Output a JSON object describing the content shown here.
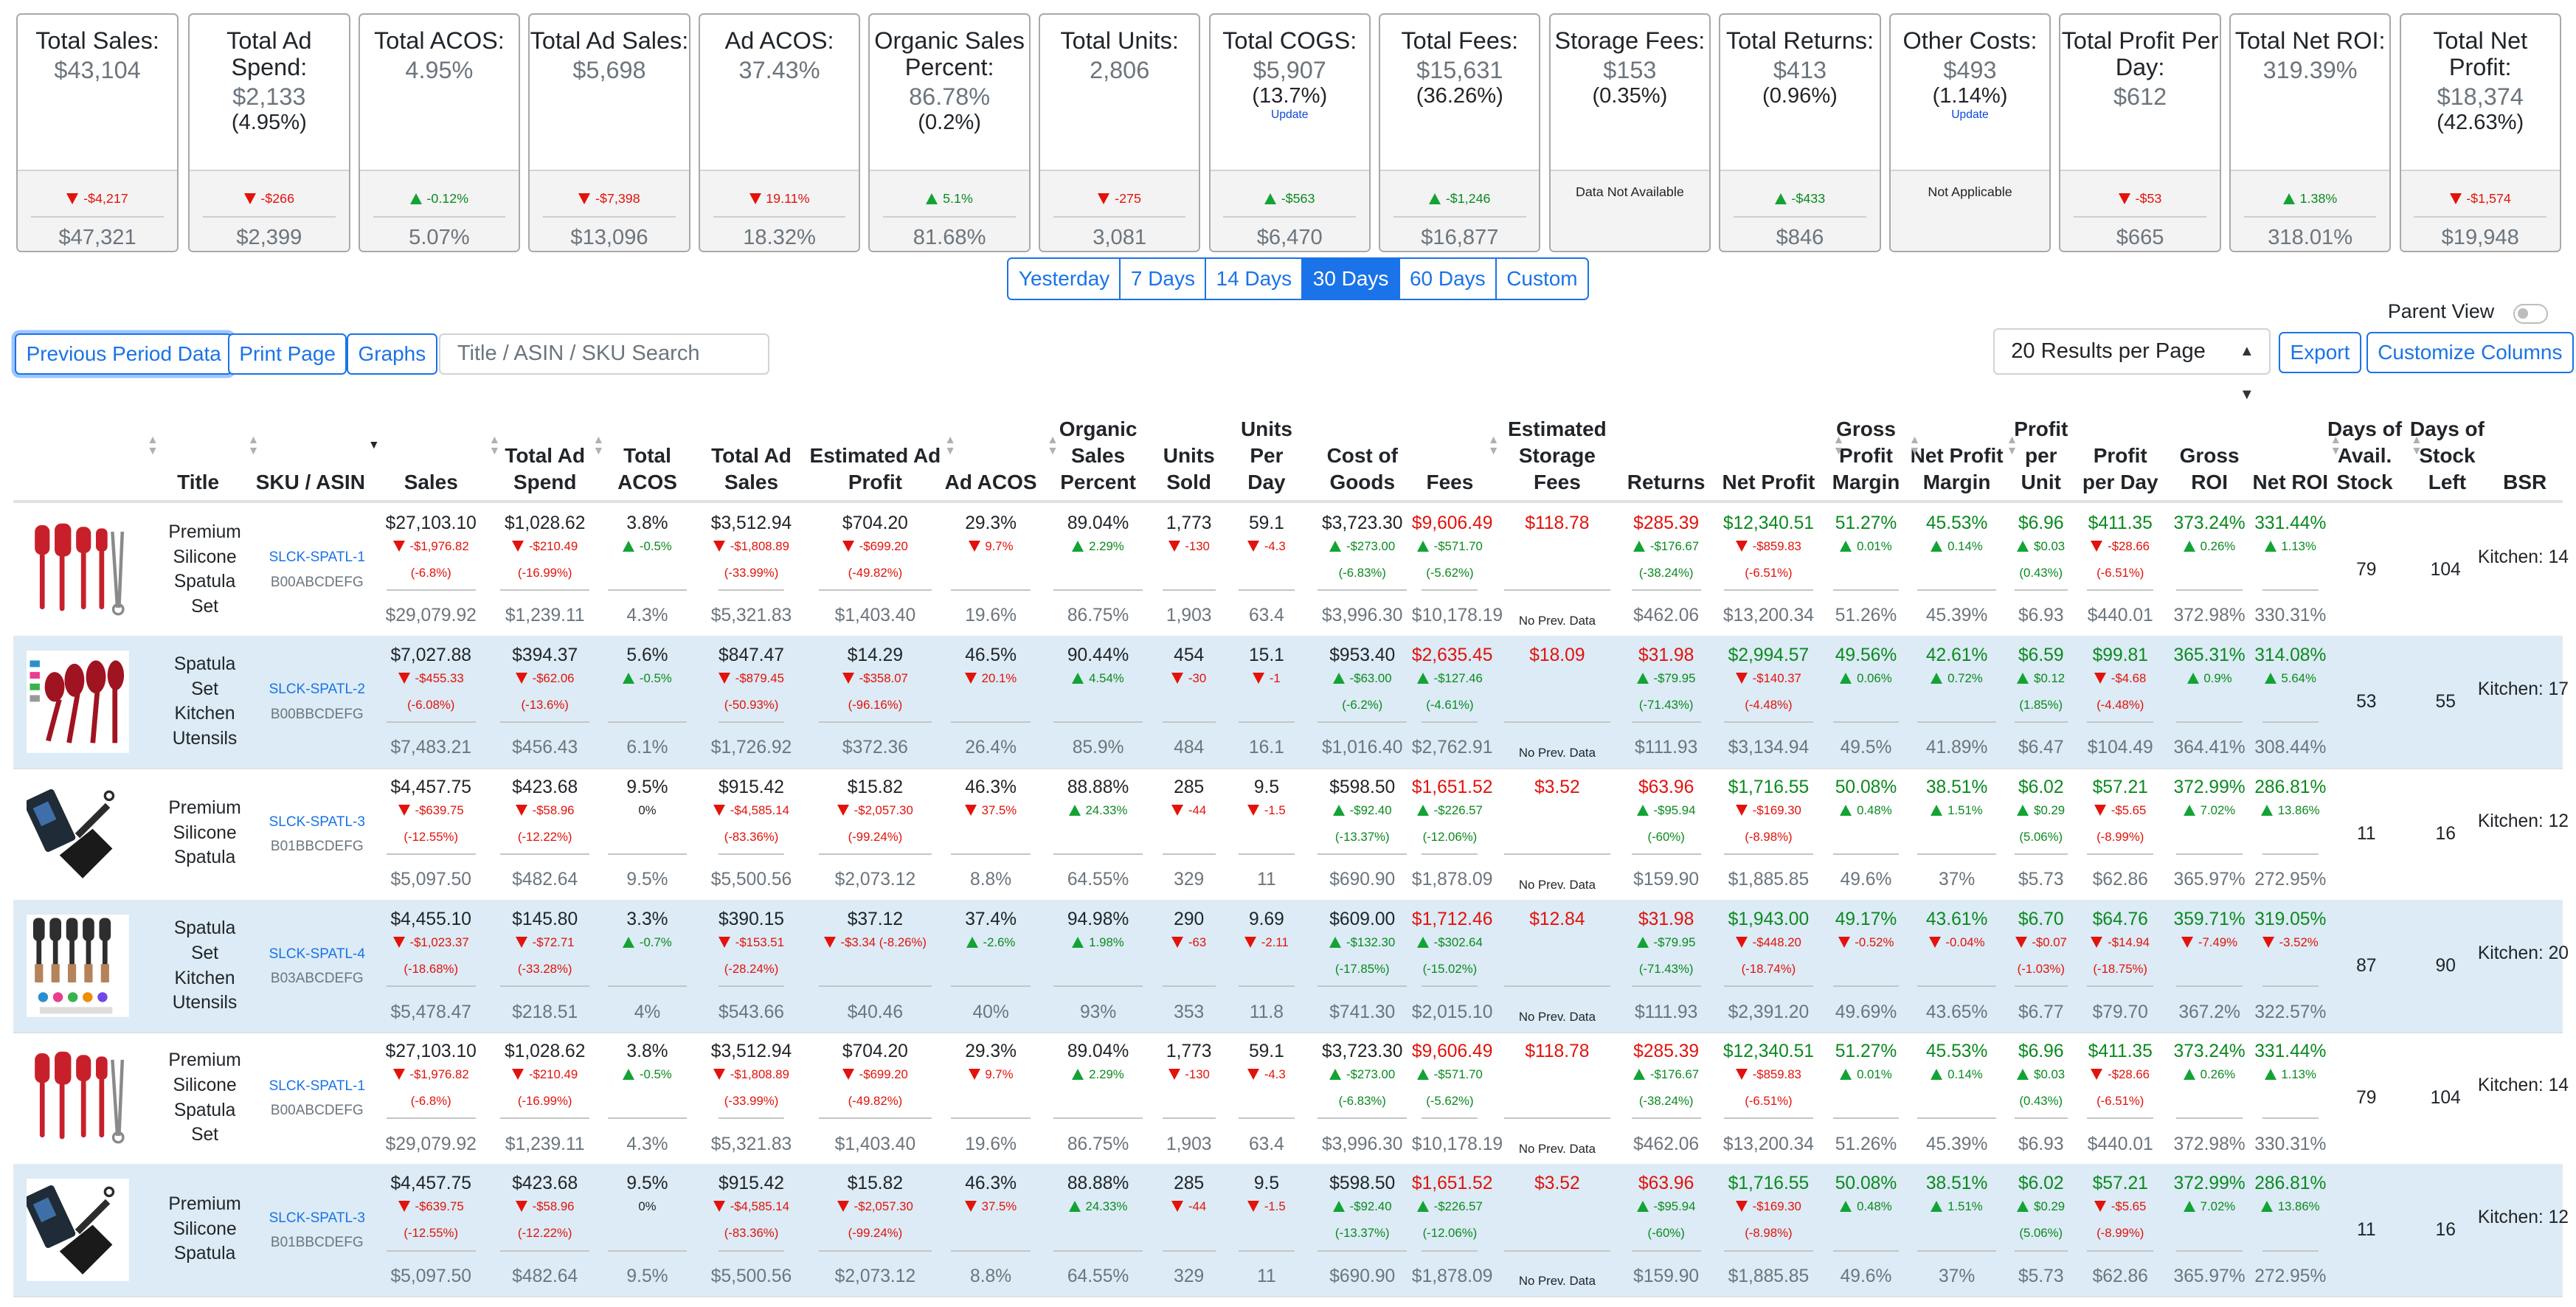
{
  "kpis": [
    {
      "title": "Total Sales:",
      "value": "$43,104",
      "sub": "",
      "link": "",
      "dir": "down",
      "change": "-$4,217",
      "prev": "$47,321"
    },
    {
      "title": "Total Ad Spend:",
      "value": "$2,133",
      "sub": "(4.95%)",
      "link": "",
      "dir": "down",
      "change": "-$266",
      "prev": "$2,399"
    },
    {
      "title": "Total ACOS:",
      "value": "4.95%",
      "sub": "",
      "link": "",
      "dir": "up",
      "change": "-0.12%",
      "prev": "5.07%"
    },
    {
      "title": "Total Ad Sales:",
      "value": "$5,698",
      "sub": "",
      "link": "",
      "dir": "down",
      "change": "-$7,398",
      "prev": "$13,096"
    },
    {
      "title": "Ad ACOS:",
      "value": "37.43%",
      "sub": "",
      "link": "",
      "dir": "down",
      "change": "19.11%",
      "prev": "18.32%"
    },
    {
      "title": "Organic Sales Percent:",
      "value": "86.78%",
      "sub": "(0.2%)",
      "link": "",
      "dir": "up",
      "change": "5.1%",
      "prev": "81.68%"
    },
    {
      "title": "Total Units:",
      "value": "2,806",
      "sub": "",
      "link": "",
      "dir": "down",
      "change": "-275",
      "prev": "3,081"
    },
    {
      "title": "Total COGS:",
      "value": "$5,907",
      "sub": "(13.7%)",
      "link": "Update",
      "dir": "up",
      "change": "-$563",
      "prev": "$6,470"
    },
    {
      "title": "Total Fees:",
      "value": "$15,631",
      "sub": "(36.26%)",
      "link": "",
      "dir": "up",
      "change": "-$1,246",
      "prev": "$16,877"
    },
    {
      "title": "Storage Fees:",
      "value": "$153",
      "sub": "(0.35%)",
      "link": "",
      "dir": "",
      "change": "Data Not Available",
      "prev": ""
    },
    {
      "title": "Total Returns:",
      "value": "$413",
      "sub": "(0.96%)",
      "link": "",
      "dir": "up",
      "change": "-$433",
      "prev": "$846"
    },
    {
      "title": "Other Costs:",
      "value": "$493",
      "sub": "(1.14%)",
      "link": "Update",
      "dir": "",
      "change": "Not Applicable",
      "prev": ""
    },
    {
      "title": "Total Profit Per Day:",
      "value": "$612",
      "sub": "",
      "link": "",
      "dir": "down",
      "change": "-$53",
      "prev": "$665"
    },
    {
      "title": "Total Net ROI:",
      "value": "319.39%",
      "sub": "",
      "link": "",
      "dir": "up",
      "change": "1.38%",
      "prev": "318.01%"
    },
    {
      "title": "Total Net Profit:",
      "value": "$18,374",
      "sub": "(42.63%)",
      "link": "",
      "dir": "down",
      "change": "-$1,574",
      "prev": "$19,948"
    }
  ],
  "periods": [
    "Yesterday",
    "7 Days",
    "14 Days",
    "30 Days",
    "60 Days",
    "Custom"
  ],
  "active_period": "30 Days",
  "toolbar": {
    "previous_period": "Previous Period Data",
    "print": "Print Page",
    "graphs": "Graphs",
    "search_placeholder": "Title / ASIN / SKU Search",
    "results_per_page": "20 Results per Page",
    "export": "Export",
    "customize": "Customize Columns",
    "parent_view": "Parent View"
  },
  "columns": [
    "Title",
    "SKU / ASIN",
    "Sales",
    "Total Ad Spend",
    "Total ACOS",
    "Total Ad Sales",
    "Estimated Ad Profit",
    "Ad ACOS",
    "Organic Sales Percent",
    "Units Sold",
    "Units Per Day",
    "Cost of Goods",
    "Fees",
    "Estimated Storage Fees",
    "Returns",
    "Net Profit",
    "Gross Profit Margin",
    "Net Profit Margin",
    "Profit per Unit",
    "Profit per Day",
    "Gross ROI",
    "Net ROI",
    "Days of Avail. Stock",
    "Days of Stock Left",
    "BSR"
  ],
  "colors": {
    "accent": "#1a73e8",
    "red": "#e3120b",
    "green": "#0a8a1f",
    "stripe": "#dcebf5"
  },
  "products": {
    "p1": {
      "title": "Premium Silicone Spatula Set",
      "sku": "SLCK-SPATL-1",
      "asin": "B00ABCDEFG",
      "image": "red-spatula-set-with-tongs",
      "days_avail": "79",
      "days_left": "104",
      "bsr": "Kitchen: 14"
    },
    "p2": {
      "title": "Spatula Set Kitchen Utensils",
      "sku": "SLCK-SPATL-2",
      "asin": "B00BBCDEFG",
      "image": "red-spatula-set-with-clips",
      "days_avail": "53",
      "days_left": "55",
      "bsr": "Kitchen: 17"
    },
    "p3": {
      "title": "Premium Silicone Spatula",
      "sku": "SLCK-SPATL-3",
      "asin": "B01BBCDEFG",
      "image": "black-turner-spatula-with-box",
      "days_avail": "11",
      "days_left": "16",
      "bsr": "Kitchen: 12"
    },
    "p4": {
      "title": "Spatula Set Kitchen Utensils",
      "sku": "SLCK-SPATL-4",
      "asin": "B03ABCDEFG",
      "image": "wooden-handle-utensil-set",
      "days_avail": "87",
      "days_left": "90",
      "bsr": "Kitchen: 20"
    }
  },
  "metrics": {
    "p1": [
      [
        "$27,103.10",
        "-$1,976.82",
        "(-6.8%)",
        "$29,079.92",
        "down"
      ],
      [
        "$1,028.62",
        "-$210.49",
        "(-16.99%)",
        "$1,239.11",
        "down"
      ],
      [
        "3.8%",
        "-0.5%",
        "",
        "4.3%",
        "up"
      ],
      [
        "$3,512.94",
        "-$1,808.89",
        "(-33.99%)",
        "$5,321.83",
        "down"
      ],
      [
        "$704.20",
        "-$699.20",
        "(-49.82%)",
        "$1,403.40",
        "down"
      ],
      [
        "29.3%",
        "9.7%",
        "",
        "19.6%",
        "down"
      ],
      [
        "89.04%",
        "2.29%",
        "",
        "86.75%",
        "up"
      ],
      [
        "1,773",
        "-130",
        "",
        "1,903",
        "down"
      ],
      [
        "59.1",
        "-4.3",
        "",
        "63.4",
        "down"
      ],
      [
        "$3,723.30",
        "-$273.00",
        "(-6.83%)",
        "$3,996.30",
        "up"
      ],
      [
        "$9,606.49",
        "-$571.70",
        "(-5.62%)",
        "$10,178.19",
        "up"
      ],
      [
        "$118.78",
        "",
        "",
        "No Prev. Data",
        "none"
      ],
      [
        "$285.39",
        "-$176.67",
        "(-38.24%)",
        "$462.06",
        "up"
      ],
      [
        "$12,340.51",
        "-$859.83",
        "(-6.51%)",
        "$13,200.34",
        "down"
      ],
      [
        "51.27%",
        "0.01%",
        "",
        "51.26%",
        "up"
      ],
      [
        "45.53%",
        "0.14%",
        "",
        "45.39%",
        "up"
      ],
      [
        "$6.96",
        "$0.03",
        "(0.43%)",
        "$6.93",
        "up"
      ],
      [
        "$411.35",
        "-$28.66",
        "(-6.51%)",
        "$440.01",
        "down"
      ],
      [
        "373.24%",
        "0.26%",
        "",
        "372.98%",
        "up"
      ],
      [
        "331.44%",
        "1.13%",
        "",
        "330.31%",
        "up"
      ]
    ],
    "p2": [
      [
        "$7,027.88",
        "-$455.33",
        "(-6.08%)",
        "$7,483.21",
        "down"
      ],
      [
        "$394.37",
        "-$62.06",
        "(-13.6%)",
        "$456.43",
        "down"
      ],
      [
        "5.6%",
        "-0.5%",
        "",
        "6.1%",
        "up"
      ],
      [
        "$847.47",
        "-$879.45",
        "(-50.93%)",
        "$1,726.92",
        "down"
      ],
      [
        "$14.29",
        "-$358.07",
        "(-96.16%)",
        "$372.36",
        "down"
      ],
      [
        "46.5%",
        "20.1%",
        "",
        "26.4%",
        "down"
      ],
      [
        "90.44%",
        "4.54%",
        "",
        "85.9%",
        "up"
      ],
      [
        "454",
        "-30",
        "",
        "484",
        "down"
      ],
      [
        "15.1",
        "-1",
        "",
        "16.1",
        "down"
      ],
      [
        "$953.40",
        "-$63.00",
        "(-6.2%)",
        "$1,016.40",
        "up"
      ],
      [
        "$2,635.45",
        "-$127.46",
        "(-4.61%)",
        "$2,762.91",
        "up"
      ],
      [
        "$18.09",
        "",
        "",
        "No Prev. Data",
        "none"
      ],
      [
        "$31.98",
        "-$79.95",
        "(-71.43%)",
        "$111.93",
        "up"
      ],
      [
        "$2,994.57",
        "-$140.37",
        "(-4.48%)",
        "$3,134.94",
        "down"
      ],
      [
        "49.56%",
        "0.06%",
        "",
        "49.5%",
        "up"
      ],
      [
        "42.61%",
        "0.72%",
        "",
        "41.89%",
        "up"
      ],
      [
        "$6.59",
        "$0.12",
        "(1.85%)",
        "$6.47",
        "up"
      ],
      [
        "$99.81",
        "-$4.68",
        "(-4.48%)",
        "$104.49",
        "down"
      ],
      [
        "365.31%",
        "0.9%",
        "",
        "364.41%",
        "up"
      ],
      [
        "314.08%",
        "5.64%",
        "",
        "308.44%",
        "up"
      ]
    ],
    "p3": [
      [
        "$4,457.75",
        "-$639.75",
        "(-12.55%)",
        "$5,097.50",
        "down"
      ],
      [
        "$423.68",
        "-$58.96",
        "(-12.22%)",
        "$482.64",
        "down"
      ],
      [
        "9.5%",
        "0%",
        "",
        "9.5%",
        "none"
      ],
      [
        "$915.42",
        "-$4,585.14",
        "(-83.36%)",
        "$5,500.56",
        "down"
      ],
      [
        "$15.82",
        "-$2,057.30",
        "(-99.24%)",
        "$2,073.12",
        "down"
      ],
      [
        "46.3%",
        "37.5%",
        "",
        "8.8%",
        "down"
      ],
      [
        "88.88%",
        "24.33%",
        "",
        "64.55%",
        "up"
      ],
      [
        "285",
        "-44",
        "",
        "329",
        "down"
      ],
      [
        "9.5",
        "-1.5",
        "",
        "11",
        "down"
      ],
      [
        "$598.50",
        "-$92.40",
        "(-13.37%)",
        "$690.90",
        "up"
      ],
      [
        "$1,651.52",
        "-$226.57",
        "(-12.06%)",
        "$1,878.09",
        "up"
      ],
      [
        "$3.52",
        "",
        "",
        "No Prev. Data",
        "none"
      ],
      [
        "$63.96",
        "-$95.94",
        "(-60%)",
        "$159.90",
        "up"
      ],
      [
        "$1,716.55",
        "-$169.30",
        "(-8.98%)",
        "$1,885.85",
        "down"
      ],
      [
        "50.08%",
        "0.48%",
        "",
        "49.6%",
        "up"
      ],
      [
        "38.51%",
        "1.51%",
        "",
        "37%",
        "up"
      ],
      [
        "$6.02",
        "$0.29",
        "(5.06%)",
        "$5.73",
        "up"
      ],
      [
        "$57.21",
        "-$5.65",
        "(-8.99%)",
        "$62.86",
        "down"
      ],
      [
        "372.99%",
        "7.02%",
        "",
        "365.97%",
        "up"
      ],
      [
        "286.81%",
        "13.86%",
        "",
        "272.95%",
        "up"
      ]
    ],
    "p4": [
      [
        "$4,455.10",
        "-$1,023.37",
        "(-18.68%)",
        "$5,478.47",
        "down"
      ],
      [
        "$145.80",
        "-$72.71",
        "(-33.28%)",
        "$218.51",
        "down"
      ],
      [
        "3.3%",
        "-0.7%",
        "",
        "4%",
        "up"
      ],
      [
        "$390.15",
        "-$153.51",
        "(-28.24%)",
        "$543.66",
        "down"
      ],
      [
        "$37.12",
        "-$3.34 (-8.26%)",
        "",
        "$40.46",
        "down"
      ],
      [
        "37.4%",
        "-2.6%",
        "",
        "40%",
        "up"
      ],
      [
        "94.98%",
        "1.98%",
        "",
        "93%",
        "up"
      ],
      [
        "290",
        "-63",
        "",
        "353",
        "down"
      ],
      [
        "9.69",
        "-2.11",
        "",
        "11.8",
        "down"
      ],
      [
        "$609.00",
        "-$132.30",
        "(-17.85%)",
        "$741.30",
        "up"
      ],
      [
        "$1,712.46",
        "-$302.64",
        "(-15.02%)",
        "$2,015.10",
        "up"
      ],
      [
        "$12.84",
        "",
        "",
        "No Prev. Data",
        "none"
      ],
      [
        "$31.98",
        "-$79.95",
        "(-71.43%)",
        "$111.93",
        "up"
      ],
      [
        "$1,943.00",
        "-$448.20",
        "(-18.74%)",
        "$2,391.20",
        "down"
      ],
      [
        "49.17%",
        "-0.52%",
        "",
        "49.69%",
        "down"
      ],
      [
        "43.61%",
        "-0.04%",
        "",
        "43.65%",
        "down"
      ],
      [
        "$6.70",
        "-$0.07",
        "(-1.03%)",
        "$6.77",
        "down"
      ],
      [
        "$64.76",
        "-$14.94",
        "(-18.75%)",
        "$79.70",
        "down"
      ],
      [
        "359.71%",
        "-7.49%",
        "",
        "367.2%",
        "down"
      ],
      [
        "319.05%",
        "-3.52%",
        "",
        "322.57%",
        "down"
      ]
    ]
  }
}
